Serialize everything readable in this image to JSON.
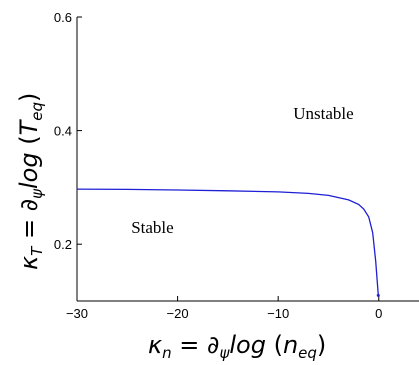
{
  "chart_data": {
    "type": "line",
    "xlabel": "κn = ∂ψlog (neq)",
    "ylabel": "κT = ∂ψlog (Teq)",
    "xlim": [
      -30,
      4
    ],
    "ylim": [
      0.1,
      0.6
    ],
    "x_ticks": [
      -30,
      -20,
      -10,
      0
    ],
    "y_ticks": [
      0.2,
      0.4,
      0.6
    ],
    "x_tick_labels": [
      "−30",
      "−20",
      "−10",
      "0"
    ],
    "y_tick_labels": [
      "0.2",
      "0.4",
      "0.6"
    ],
    "grid": false,
    "annotations": [
      {
        "text": "Unstable",
        "x": -5.5,
        "y": 0.42
      },
      {
        "text": "Stable",
        "x": -22.5,
        "y": 0.22
      }
    ],
    "series": [
      {
        "color": "#1f1fd6",
        "x": [
          -30,
          -25,
          -20,
          -15,
          -10,
          -7,
          -5,
          -3,
          -2,
          -1.5,
          -1.0,
          -0.6,
          -0.3,
          -0.05
        ],
        "y": [
          0.297,
          0.2965,
          0.2955,
          0.294,
          0.292,
          0.2895,
          0.286,
          0.278,
          0.27,
          0.262,
          0.248,
          0.22,
          0.17,
          0.11
        ]
      }
    ]
  }
}
